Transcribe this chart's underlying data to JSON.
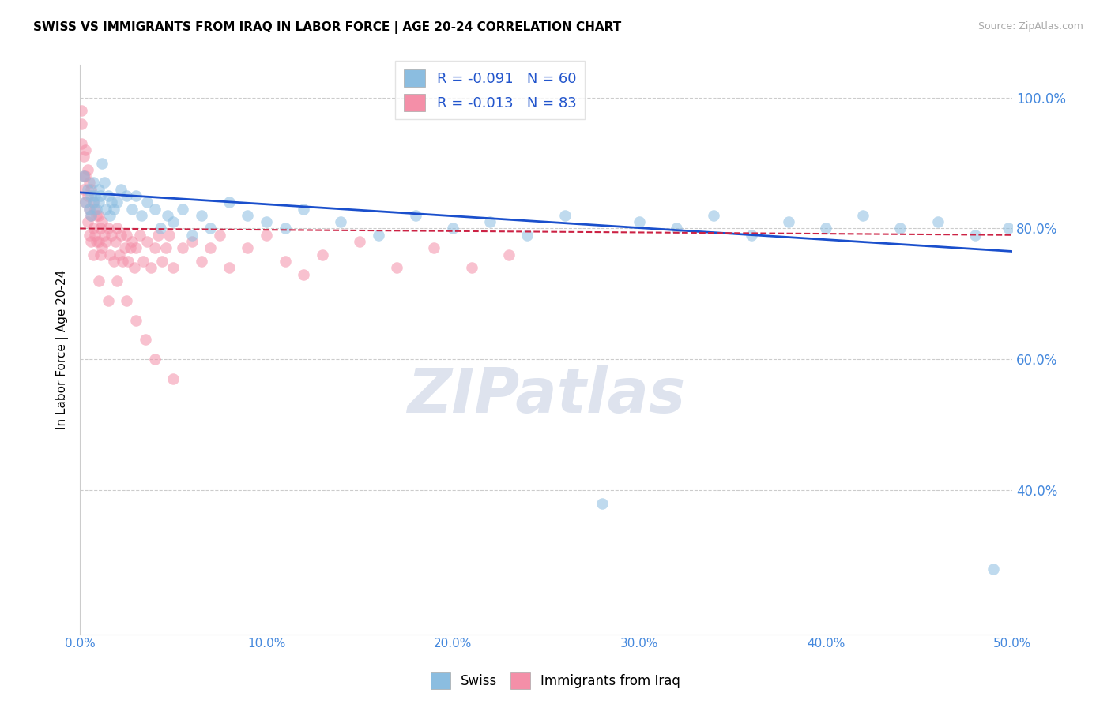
{
  "title": "SWISS VS IMMIGRANTS FROM IRAQ IN LABOR FORCE | AGE 20-24 CORRELATION CHART",
  "source": "Source: ZipAtlas.com",
  "ylabel": "In Labor Force | Age 20-24",
  "xlim": [
    0.0,
    0.5
  ],
  "ylim": [
    0.18,
    1.05
  ],
  "xticks": [
    0.0,
    0.1,
    0.2,
    0.3,
    0.4,
    0.5
  ],
  "xticklabels": [
    "0.0%",
    "10.0%",
    "20.0%",
    "30.0%",
    "40.0%",
    "50.0%"
  ],
  "yticks": [
    0.4,
    0.6,
    0.8,
    1.0
  ],
  "yticklabels": [
    "40.0%",
    "60.0%",
    "80.0%",
    "100.0%"
  ],
  "legend_label_swiss": "Swiss",
  "legend_label_iraq": "Immigrants from Iraq",
  "watermark": "ZIPatlas",
  "swiss_color": "#8bbde0",
  "iraq_color": "#f48fa8",
  "swiss_line_color": "#1a4fcc",
  "iraq_line_color": "#cc2244",
  "swiss_R": -0.091,
  "swiss_N": 60,
  "iraq_R": -0.013,
  "iraq_N": 83,
  "swiss_x": [
    0.002,
    0.003,
    0.004,
    0.005,
    0.006,
    0.006,
    0.007,
    0.007,
    0.008,
    0.009,
    0.01,
    0.01,
    0.011,
    0.012,
    0.013,
    0.014,
    0.015,
    0.016,
    0.017,
    0.018,
    0.02,
    0.022,
    0.025,
    0.028,
    0.03,
    0.033,
    0.036,
    0.04,
    0.043,
    0.047,
    0.05,
    0.055,
    0.06,
    0.065,
    0.07,
    0.08,
    0.09,
    0.1,
    0.11,
    0.12,
    0.14,
    0.16,
    0.18,
    0.2,
    0.22,
    0.24,
    0.26,
    0.28,
    0.3,
    0.32,
    0.34,
    0.36,
    0.38,
    0.4,
    0.42,
    0.44,
    0.46,
    0.48,
    0.49,
    0.498
  ],
  "swiss_y": [
    0.88,
    0.84,
    0.86,
    0.83,
    0.85,
    0.82,
    0.87,
    0.84,
    0.85,
    0.83,
    0.86,
    0.84,
    0.85,
    0.9,
    0.87,
    0.83,
    0.85,
    0.82,
    0.84,
    0.83,
    0.84,
    0.86,
    0.85,
    0.83,
    0.85,
    0.82,
    0.84,
    0.83,
    0.8,
    0.82,
    0.81,
    0.83,
    0.79,
    0.82,
    0.8,
    0.84,
    0.82,
    0.81,
    0.8,
    0.83,
    0.81,
    0.79,
    0.82,
    0.8,
    0.81,
    0.79,
    0.82,
    0.38,
    0.81,
    0.8,
    0.82,
    0.79,
    0.81,
    0.8,
    0.82,
    0.8,
    0.81,
    0.79,
    0.28,
    0.8
  ],
  "iraq_x": [
    0.001,
    0.001,
    0.001,
    0.002,
    0.002,
    0.002,
    0.003,
    0.003,
    0.003,
    0.004,
    0.004,
    0.004,
    0.005,
    0.005,
    0.005,
    0.006,
    0.006,
    0.006,
    0.007,
    0.007,
    0.007,
    0.008,
    0.008,
    0.009,
    0.009,
    0.01,
    0.01,
    0.011,
    0.011,
    0.012,
    0.012,
    0.013,
    0.014,
    0.015,
    0.016,
    0.017,
    0.018,
    0.019,
    0.02,
    0.021,
    0.022,
    0.023,
    0.024,
    0.025,
    0.026,
    0.027,
    0.028,
    0.029,
    0.03,
    0.032,
    0.034,
    0.036,
    0.038,
    0.04,
    0.042,
    0.044,
    0.046,
    0.048,
    0.05,
    0.055,
    0.06,
    0.065,
    0.07,
    0.075,
    0.08,
    0.09,
    0.1,
    0.11,
    0.12,
    0.13,
    0.15,
    0.17,
    0.19,
    0.21,
    0.23,
    0.01,
    0.015,
    0.02,
    0.025,
    0.03,
    0.035,
    0.04,
    0.05
  ],
  "iraq_y": [
    0.98,
    0.96,
    0.93,
    0.91,
    0.88,
    0.86,
    0.92,
    0.88,
    0.84,
    0.89,
    0.85,
    0.81,
    0.87,
    0.83,
    0.79,
    0.86,
    0.82,
    0.78,
    0.84,
    0.8,
    0.76,
    0.83,
    0.79,
    0.82,
    0.78,
    0.82,
    0.78,
    0.8,
    0.76,
    0.81,
    0.77,
    0.79,
    0.78,
    0.8,
    0.76,
    0.79,
    0.75,
    0.78,
    0.8,
    0.76,
    0.79,
    0.75,
    0.77,
    0.79,
    0.75,
    0.77,
    0.78,
    0.74,
    0.77,
    0.79,
    0.75,
    0.78,
    0.74,
    0.77,
    0.79,
    0.75,
    0.77,
    0.79,
    0.74,
    0.77,
    0.78,
    0.75,
    0.77,
    0.79,
    0.74,
    0.77,
    0.79,
    0.75,
    0.73,
    0.76,
    0.78,
    0.74,
    0.77,
    0.74,
    0.76,
    0.72,
    0.69,
    0.72,
    0.69,
    0.66,
    0.63,
    0.6,
    0.57
  ]
}
